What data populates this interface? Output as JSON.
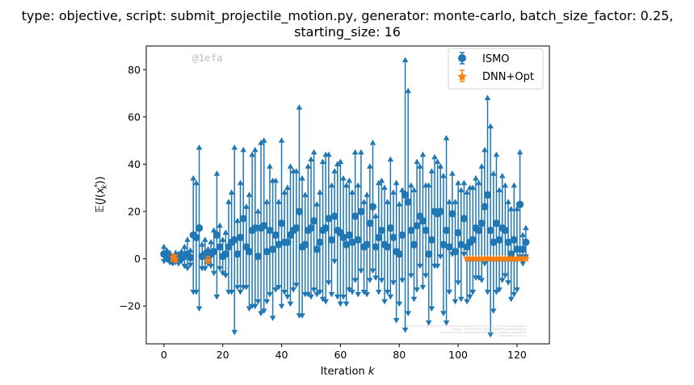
{
  "chart_data": {
    "type": "scatter",
    "title_lines": [
      "type: objective, script: submit_projectile_motion.py, generator: monte-carlo, batch_size_factor: 0.25,",
      "starting_size: 16"
    ],
    "xlabel": "Iteration k",
    "ylabel": "𝔼(J(x_k*))",
    "xlim": [
      -6,
      131
    ],
    "ylim": [
      -36,
      90
    ],
    "xticks": [
      0,
      20,
      40,
      60,
      80,
      100,
      120
    ],
    "yticks": [
      -20,
      0,
      20,
      40,
      60,
      80
    ],
    "grid": false,
    "legend_position": "top-right",
    "watermark": "@1efa",
    "fine_print": [
      "By Kjetil Olsen Lye @ ETH Zürich, kjetil.o.lye@gmail.com (not in use), 2019 in ismo/python3.x",
      "Commit: 2ca3f83f9e7472979e789e9bd5eab2b7b80e9aaa",
      "Repo: https://github.com/kjetil-lye/iterative_surrogate_optimization",
      "Hostname: pc-lye-01"
    ],
    "series": [
      {
        "name": "ISMO",
        "color": "#1f77b4",
        "marker": "circle",
        "x": [
          0,
          1,
          2,
          3,
          4,
          5,
          6,
          7,
          8,
          9,
          10,
          11,
          12,
          13,
          14,
          15,
          16,
          17,
          18,
          19,
          20,
          21,
          22,
          23,
          24,
          25,
          26,
          27,
          28,
          29,
          30,
          31,
          32,
          33,
          34,
          35,
          36,
          37,
          38,
          39,
          40,
          41,
          42,
          43,
          44,
          45,
          46,
          47,
          48,
          49,
          50,
          51,
          52,
          53,
          54,
          55,
          56,
          57,
          58,
          59,
          60,
          61,
          62,
          63,
          64,
          65,
          66,
          67,
          68,
          69,
          70,
          71,
          72,
          73,
          74,
          75,
          76,
          77,
          78,
          79,
          80,
          81,
          82,
          83,
          84,
          85,
          86,
          87,
          88,
          89,
          90,
          91,
          92,
          93,
          94,
          95,
          96,
          97,
          98,
          99,
          100,
          101,
          102,
          103,
          104,
          105,
          106,
          107,
          108,
          109,
          110,
          111,
          112,
          113,
          114,
          115,
          116,
          117,
          118,
          119,
          120,
          121,
          122,
          123
        ],
        "y": [
          2,
          1.5,
          0.5,
          -1,
          0.5,
          0,
          1,
          1,
          2,
          0.5,
          10,
          9,
          13,
          1,
          2,
          1,
          2,
          3,
          10,
          5,
          1,
          2,
          5,
          7,
          8,
          2,
          9,
          17,
          5,
          3,
          12,
          13,
          1,
          13,
          14,
          3,
          12,
          4,
          10,
          6,
          15,
          7,
          7,
          10,
          12,
          13,
          20,
          5,
          6,
          12,
          13,
          16,
          4,
          7,
          12,
          13,
          17,
          8,
          18,
          12,
          11,
          9,
          6,
          10,
          7,
          18,
          8,
          20,
          5,
          6,
          15,
          22,
          5,
          9,
          12,
          6,
          5,
          13,
          9,
          3,
          2,
          10,
          27,
          24,
          12,
          6,
          14,
          18,
          16,
          12,
          2,
          8,
          20,
          19,
          20,
          6,
          12,
          5,
          19,
          3,
          11,
          6,
          17,
          5,
          7,
          8,
          13,
          12,
          15,
          22,
          27,
          12,
          7,
          15,
          8,
          13,
          12,
          7,
          2,
          8,
          4,
          23,
          4,
          7
        ],
        "yerr": [
          4,
          3,
          3,
          2,
          3,
          3,
          3,
          5,
          7,
          4,
          25,
          24,
          35,
          6,
          7,
          4,
          6,
          10,
          27,
          10,
          8,
          10,
          20,
          22,
          40,
          15,
          24,
          30,
          18,
          25,
          33,
          34,
          20,
          37,
          37,
          22,
          28,
          30,
          24,
          19,
          36,
          22,
          24,
          30,
          26,
          25,
          45,
          30,
          22,
          28,
          30,
          30,
          20,
          22,
          30,
          32,
          28,
          24,
          20,
          29,
          31,
          26,
          26,
          24,
          22,
          28,
          24,
          26,
          20,
          22,
          25,
          28,
          14,
          24,
          22,
          25,
          20,
          30,
          20,
          30,
          22,
          20,
          58,
          48,
          20,
          24,
          28,
          22,
          29,
          20,
          30,
          30,
          24,
          23,
          20,
          30,
          40,
          20,
          18,
          22,
          22,
          24,
          16,
          24,
          24,
          23,
          22,
          21,
          25,
          25,
          42,
          45,
          30,
          30,
          22,
          23,
          20,
          18,
          20,
          24,
          18,
          23,
          7,
          7
        ]
      },
      {
        "name": "DNN+Opt",
        "color": "#ff7f0e",
        "marker": "star",
        "x": [
          3,
          4,
          15,
          103,
          104,
          105,
          106,
          107,
          108,
          109,
          110,
          111,
          112,
          113,
          114,
          115,
          116,
          117,
          118,
          119,
          120,
          121,
          122,
          123
        ],
        "y": [
          0.5,
          0,
          -0.5,
          0,
          0,
          0,
          0,
          0,
          0,
          0,
          0,
          0,
          0,
          0,
          0,
          0,
          0,
          0,
          0,
          0,
          0,
          0,
          0,
          0
        ],
        "yerr": [
          1.5,
          1.5,
          1.5,
          0.6,
          0.6,
          0.6,
          0.6,
          0.6,
          0.6,
          0.6,
          0.6,
          0.6,
          0.6,
          0.6,
          0.6,
          0.6,
          0.6,
          0.6,
          0.6,
          0.6,
          0.6,
          0.6,
          0.6,
          0.6
        ]
      }
    ]
  }
}
